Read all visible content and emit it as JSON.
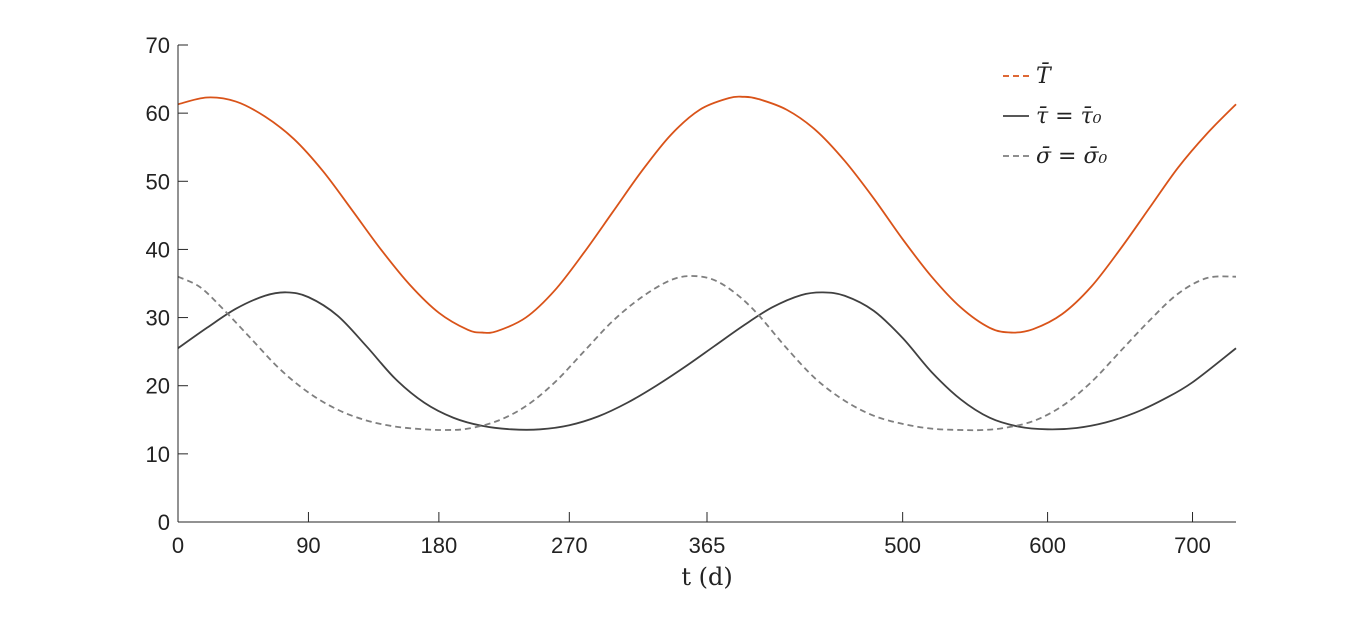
{
  "chart_data": {
    "type": "line",
    "title": "",
    "xlabel": "t (d)",
    "ylabel": "",
    "xlim": [
      0,
      730
    ],
    "ylim": [
      0,
      70
    ],
    "xticks": [
      0,
      90,
      180,
      270,
      365,
      500,
      600,
      700
    ],
    "yticks": [
      0,
      10,
      20,
      30,
      40,
      50,
      60,
      70
    ],
    "grid": false,
    "legend_position": "top-right",
    "series": [
      {
        "name": "T̄",
        "style": "solid",
        "color": "#D95319",
        "legend_style": "dashed",
        "x": [
          0,
          20,
          40,
          60,
          80,
          100,
          120,
          140,
          160,
          180,
          200,
          210,
          220,
          240,
          260,
          280,
          300,
          320,
          340,
          360,
          380,
          390,
          400,
          420,
          440,
          460,
          480,
          500,
          520,
          540,
          560,
          575,
          590,
          610,
          630,
          650,
          670,
          690,
          710,
          730
        ],
        "y": [
          61.3,
          62.3,
          61.7,
          59.5,
          56.2,
          51.5,
          45.8,
          40.0,
          34.8,
          30.7,
          28.2,
          27.8,
          28.0,
          30.0,
          34.0,
          39.5,
          45.5,
          51.5,
          56.8,
          60.5,
          62.2,
          62.4,
          62.1,
          60.5,
          57.5,
          53.0,
          47.5,
          41.5,
          36.0,
          31.5,
          28.5,
          27.8,
          28.3,
          30.5,
          34.5,
          40.0,
          46.0,
          52.0,
          57.0,
          61.3
        ]
      },
      {
        "name": "τ̄ = τ̄₀",
        "style": "solid",
        "color": "#404040",
        "legend_style": "solid",
        "x": [
          0,
          20,
          40,
          60,
          75,
          90,
          110,
          130,
          150,
          170,
          190,
          210,
          230,
          250,
          270,
          290,
          310,
          330,
          350,
          370,
          390,
          410,
          430,
          445,
          460,
          480,
          500,
          520,
          540,
          560,
          580,
          600,
          620,
          640,
          660,
          680,
          700,
          730
        ],
        "y": [
          25.5,
          28.5,
          31.3,
          33.2,
          33.7,
          33.0,
          30.3,
          25.8,
          21.0,
          17.5,
          15.3,
          14.1,
          13.6,
          13.6,
          14.2,
          15.5,
          17.5,
          20.0,
          22.8,
          25.8,
          28.8,
          31.5,
          33.3,
          33.7,
          33.2,
          31.0,
          27.0,
          22.0,
          18.0,
          15.3,
          14.0,
          13.6,
          13.8,
          14.6,
          16.0,
          18.0,
          20.5,
          25.5
        ]
      },
      {
        "name": "σ̄ = σ̄₀",
        "style": "dashed",
        "color": "#7F7F7F",
        "legend_style": "dashed",
        "x": [
          0,
          15,
          30,
          50,
          70,
          90,
          110,
          130,
          150,
          170,
          185,
          200,
          220,
          240,
          260,
          280,
          300,
          320,
          340,
          355,
          370,
          385,
          400,
          420,
          440,
          460,
          480,
          500,
          520,
          540,
          555,
          570,
          590,
          610,
          630,
          650,
          670,
          690,
          710,
          730
        ],
        "y": [
          36.0,
          34.5,
          31.5,
          27.0,
          22.5,
          19.0,
          16.5,
          14.9,
          14.0,
          13.6,
          13.5,
          13.7,
          14.8,
          17.0,
          20.5,
          25.0,
          29.5,
          33.0,
          35.5,
          36.1,
          35.5,
          33.5,
          30.5,
          25.5,
          21.0,
          17.8,
          15.6,
          14.4,
          13.7,
          13.5,
          13.5,
          13.8,
          14.8,
          17.0,
          20.5,
          25.0,
          29.5,
          33.5,
          35.8,
          36.0
        ]
      }
    ]
  }
}
